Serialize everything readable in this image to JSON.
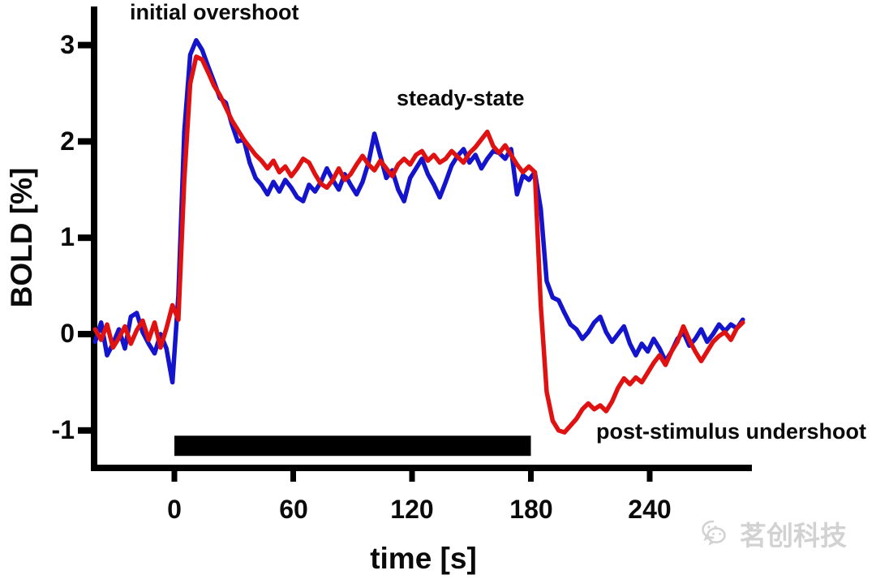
{
  "figure": {
    "annotations": {
      "initial_overshoot": "initial overshoot",
      "steady_state": "steady-state",
      "post_stimulus_undershoot": "post-stimulus undershoot"
    },
    "axes": {
      "x_label": "time [s]",
      "y_label": "BOLD [%]",
      "x_tick_labels": [
        "0",
        "60",
        "120",
        "180",
        "240"
      ],
      "y_tick_labels": [
        "3",
        "2",
        "1",
        "0",
        "-1"
      ]
    },
    "watermark": {
      "text": "茗创科技",
      "icon": "wechat-icon",
      "color": "#d2d2d2"
    }
  },
  "chart_data": {
    "type": "line",
    "title": "",
    "xlabel": "time [s]",
    "ylabel": "BOLD [%]",
    "xlim": [
      -41,
      292
    ],
    "ylim": [
      -1.45,
      3.4
    ],
    "x_ticks": [
      0,
      60,
      120,
      180,
      240
    ],
    "y_ticks": [
      3,
      2,
      1,
      0,
      -1
    ],
    "grid": false,
    "legend": "none",
    "x_start": -40,
    "x_step": 3,
    "stimulus_bar": {
      "t_start": 0,
      "t_end": 180,
      "value": -1.16,
      "thickness": 0.21,
      "color": "#000000"
    },
    "annotations": [
      {
        "text": "initial overshoot",
        "x": 25,
        "y": 3.35
      },
      {
        "text": "steady-state",
        "x": 147,
        "y": 2.45
      },
      {
        "text": "post-stimulus undershoot",
        "x": 250,
        "y": -1.05
      }
    ],
    "series": [
      {
        "name": "blue-trace",
        "color": "#1414cc",
        "values": [
          -0.08,
          0.12,
          -0.22,
          -0.1,
          0.05,
          -0.15,
          0.18,
          0.22,
          0.02,
          -0.1,
          -0.2,
          0.0,
          -0.15,
          -0.5,
          0.4,
          2.1,
          2.9,
          3.05,
          2.95,
          2.78,
          2.62,
          2.45,
          2.4,
          2.18,
          2.0,
          2.02,
          1.78,
          1.62,
          1.55,
          1.45,
          1.58,
          1.48,
          1.6,
          1.52,
          1.42,
          1.38,
          1.55,
          1.48,
          1.58,
          1.72,
          1.6,
          1.5,
          1.66,
          1.55,
          1.45,
          1.58,
          1.78,
          2.08,
          1.85,
          1.62,
          1.7,
          1.5,
          1.38,
          1.62,
          1.72,
          1.82,
          1.66,
          1.55,
          1.42,
          1.58,
          1.75,
          1.85,
          1.92,
          1.78,
          1.86,
          1.72,
          1.82,
          1.9,
          1.88,
          1.82,
          1.92,
          1.45,
          1.65,
          1.6,
          1.68,
          1.3,
          0.55,
          0.38,
          0.35,
          0.22,
          0.1,
          0.05,
          -0.05,
          0.02,
          0.12,
          0.18,
          0.02,
          -0.08,
          0.0,
          0.08,
          -0.1,
          -0.22,
          -0.1,
          -0.18,
          -0.05,
          -0.15,
          -0.28,
          -0.18,
          -0.05,
          0.02,
          -0.12,
          -0.05,
          0.05,
          -0.08,
          0.0,
          0.1,
          0.03,
          0.1,
          0.06,
          0.15
        ]
      },
      {
        "name": "red-trace",
        "color": "#e01111",
        "values": [
          0.05,
          -0.06,
          0.1,
          -0.14,
          -0.04,
          0.08,
          -0.1,
          0.04,
          0.14,
          -0.06,
          0.12,
          -0.14,
          0.06,
          0.3,
          0.15,
          1.6,
          2.6,
          2.88,
          2.85,
          2.72,
          2.58,
          2.48,
          2.35,
          2.22,
          2.12,
          2.02,
          1.94,
          1.86,
          1.8,
          1.72,
          1.8,
          1.68,
          1.74,
          1.64,
          1.72,
          1.82,
          1.78,
          1.66,
          1.56,
          1.52,
          1.6,
          1.72,
          1.6,
          1.66,
          1.76,
          1.85,
          1.76,
          1.7,
          1.8,
          1.72,
          1.64,
          1.76,
          1.82,
          1.76,
          1.86,
          1.9,
          1.8,
          1.86,
          1.78,
          1.82,
          1.9,
          1.84,
          1.78,
          1.88,
          1.94,
          2.02,
          2.1,
          1.95,
          1.88,
          1.96,
          1.86,
          1.76,
          1.68,
          1.74,
          1.68,
          0.3,
          -0.6,
          -0.9,
          -1.0,
          -1.02,
          -0.95,
          -0.88,
          -0.78,
          -0.72,
          -0.78,
          -0.74,
          -0.8,
          -0.7,
          -0.56,
          -0.46,
          -0.52,
          -0.45,
          -0.5,
          -0.4,
          -0.3,
          -0.22,
          -0.32,
          -0.18,
          -0.08,
          0.08,
          -0.06,
          -0.18,
          -0.28,
          -0.18,
          -0.08,
          -0.02,
          0.02,
          -0.06,
          0.06,
          0.12
        ]
      }
    ]
  }
}
